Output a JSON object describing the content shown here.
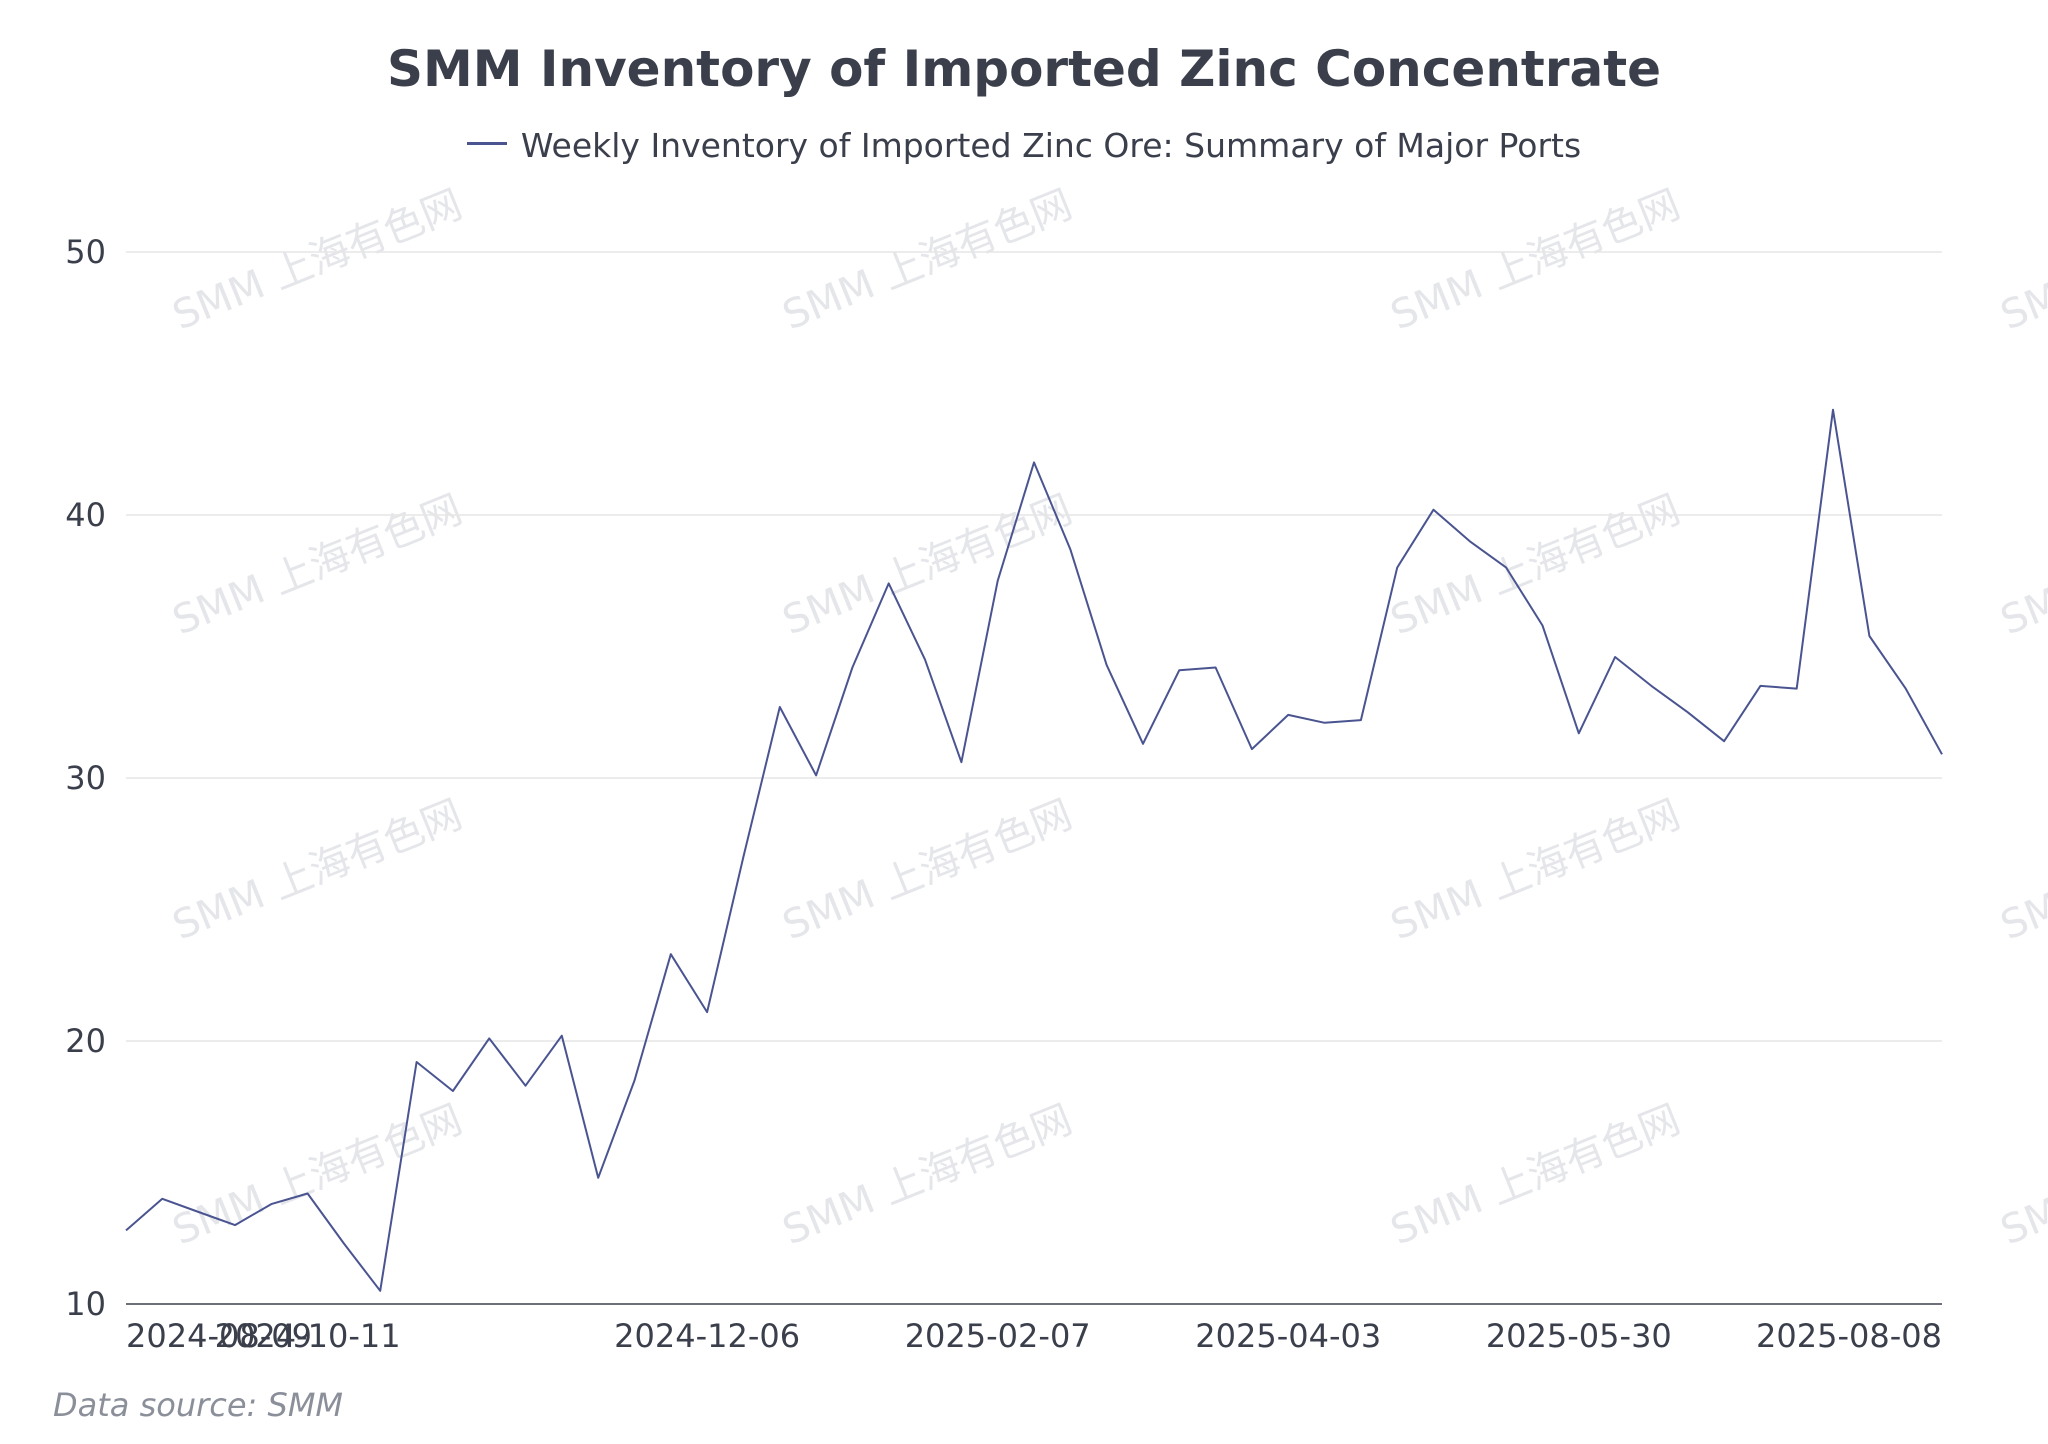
{
  "title": "SMM Inventory of Imported Zinc Concentrate",
  "source_note": "Data source:  SMM",
  "watermark_text": "SMM 上海有色网",
  "colors": {
    "line": "#4a5490",
    "grid": "#e6e6e6",
    "axis": "#6e7079",
    "text": "#3a3f4b"
  },
  "chart_data": {
    "type": "line",
    "title": "SMM Inventory of Imported Zinc Concentrate",
    "xlabel": "",
    "ylabel": "",
    "ylim": [
      10,
      50
    ],
    "yticks": [
      10,
      20,
      30,
      40,
      50
    ],
    "grid": true,
    "legend_position": "top-center",
    "x_tick_labels": [
      {
        "index": 1,
        "label": "2024-08-09"
      },
      {
        "index": 5,
        "label": "2024-10-11"
      },
      {
        "index": 16,
        "label": "2024-12-06"
      },
      {
        "index": 24,
        "label": "2025-02-07"
      },
      {
        "index": 32,
        "label": "2025-04-03"
      },
      {
        "index": 40,
        "label": "2025-05-30"
      },
      {
        "index": 50,
        "label": "2025-08-08"
      }
    ],
    "series": [
      {
        "name": "Weekly Inventory of Imported Zinc Ore: Summary of Major Ports",
        "values": [
          12.8,
          14.0,
          13.5,
          13.0,
          13.8,
          14.2,
          12.3,
          10.5,
          19.2,
          18.1,
          20.1,
          18.3,
          20.2,
          14.8,
          18.5,
          23.3,
          21.1,
          27.0,
          32.7,
          30.1,
          34.2,
          37.4,
          34.5,
          30.6,
          37.5,
          42.0,
          38.7,
          34.3,
          31.3,
          34.1,
          34.2,
          31.1,
          32.4,
          32.1,
          32.2,
          38.0,
          40.2,
          39.0,
          38.0,
          35.8,
          31.7,
          34.6,
          33.5,
          32.5,
          31.4,
          33.5,
          33.4,
          44.0,
          35.4,
          33.4,
          30.9
        ]
      }
    ]
  }
}
